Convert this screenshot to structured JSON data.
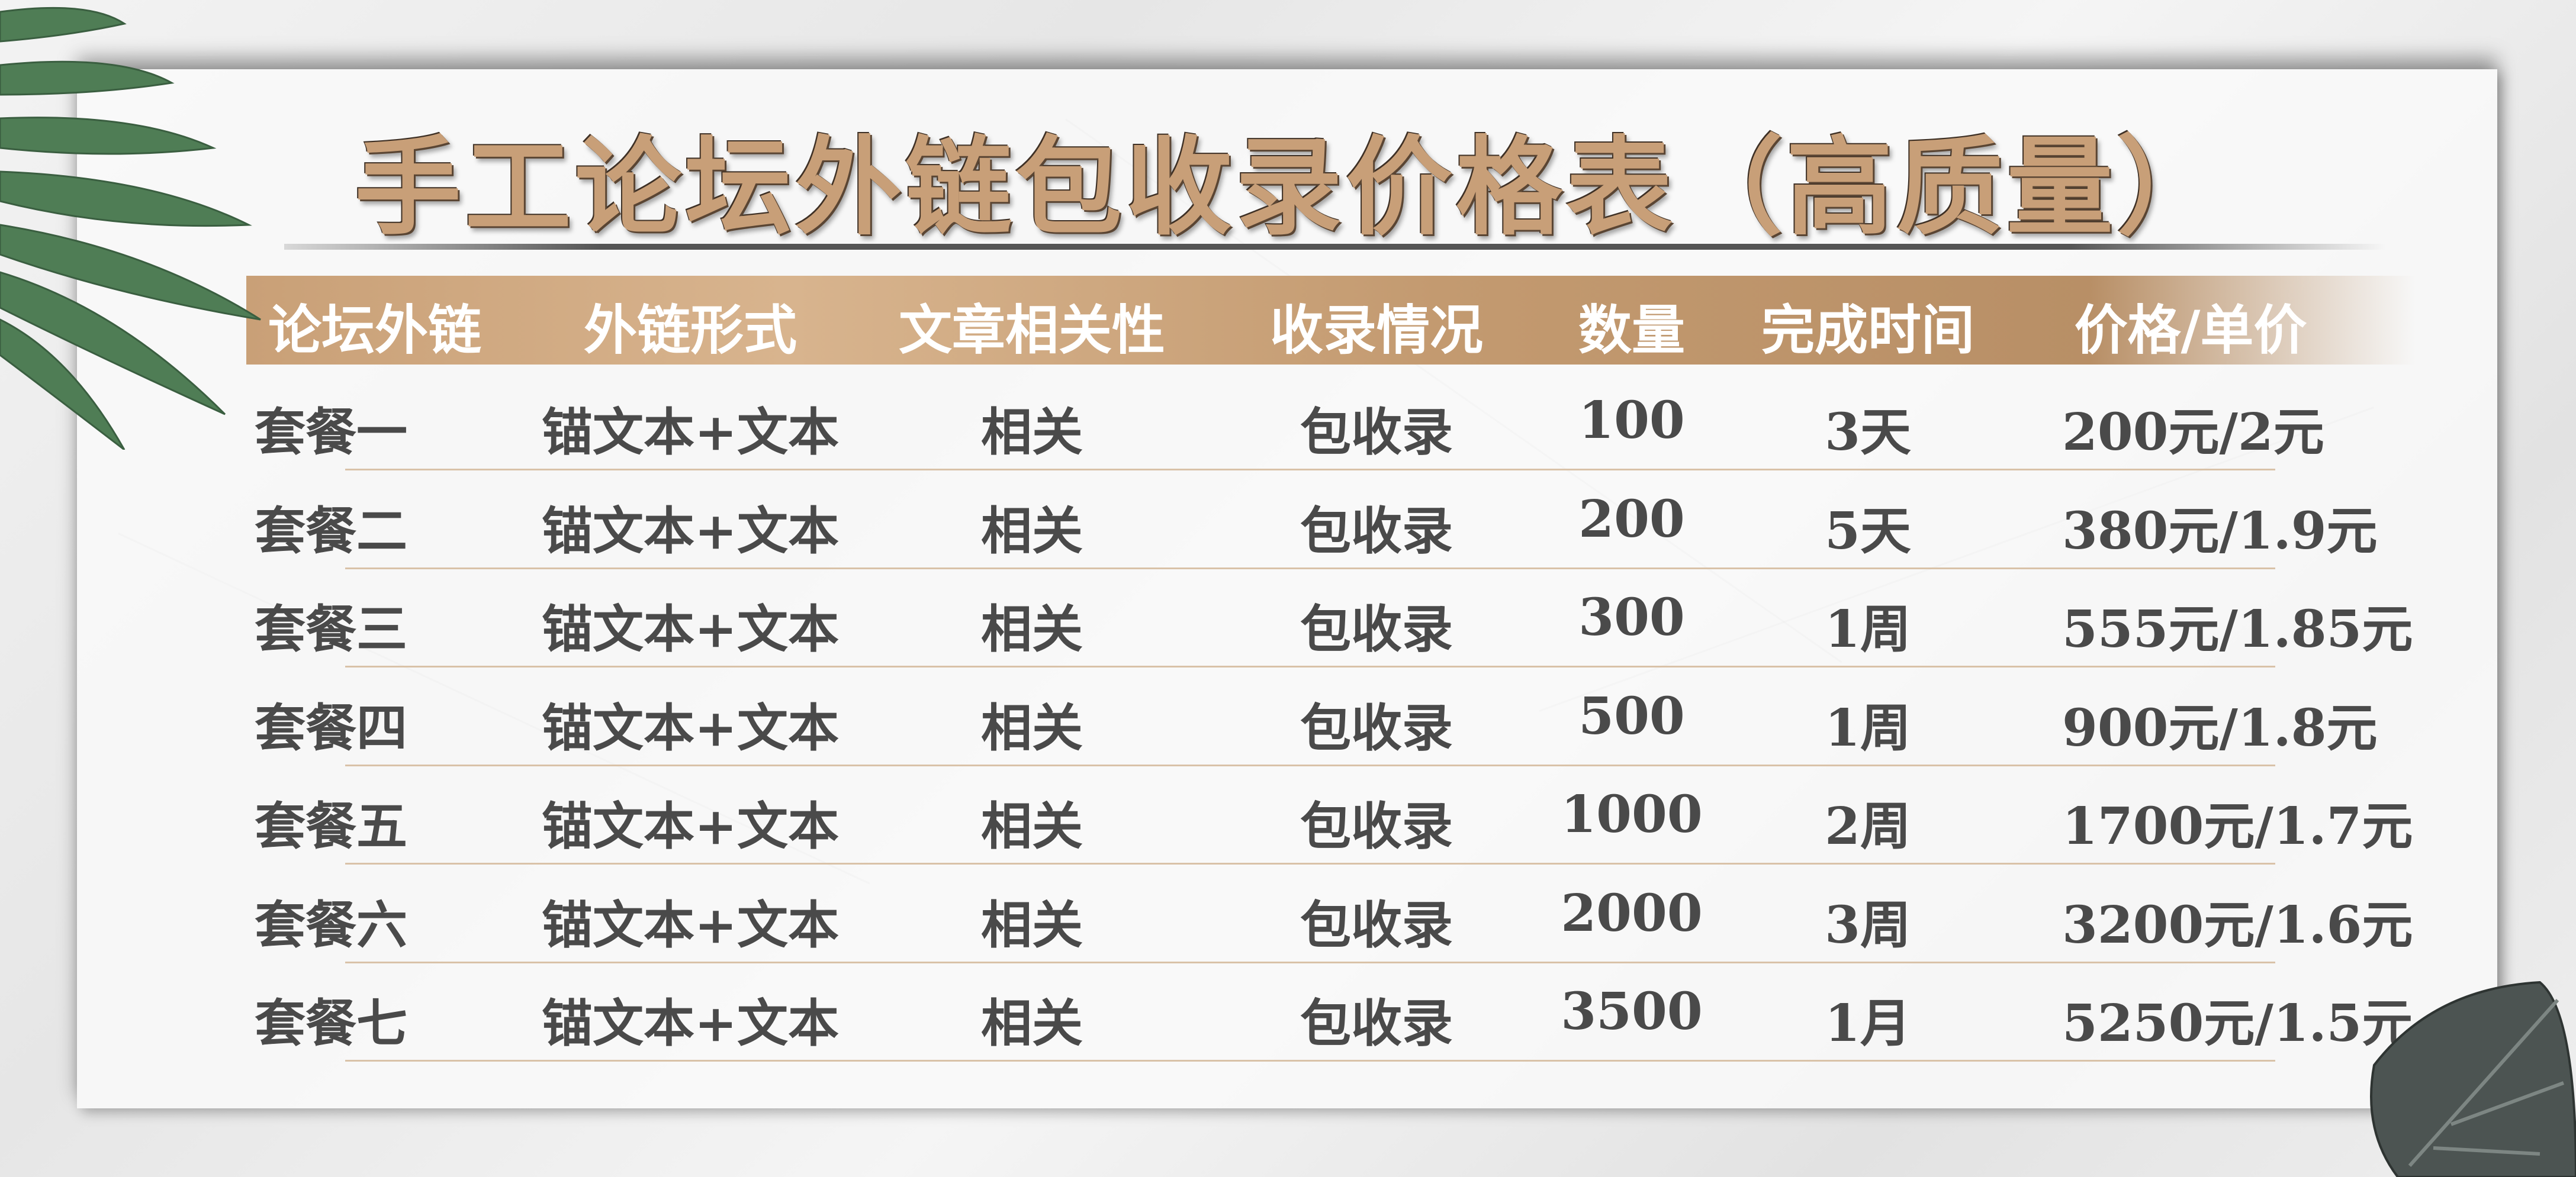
{
  "title": "手工论坛外链包收录价格表（高质量）",
  "colors": {
    "accent": "#c89f78",
    "header_band": "#c39a70",
    "text": "#4a4a4a",
    "leaf": "#4f7d55"
  },
  "table": {
    "headers": [
      "论坛外链",
      "外链形式",
      "文章相关性",
      "收录情况",
      "数量",
      "完成时间",
      "价格/单价"
    ],
    "rows": [
      [
        "套餐一",
        "锚文本+文本",
        "相关",
        "包收录",
        "100",
        "3天",
        "200元/2元"
      ],
      [
        "套餐二",
        "锚文本+文本",
        "相关",
        "包收录",
        "200",
        "5天",
        "380元/1.9元"
      ],
      [
        "套餐三",
        "锚文本+文本",
        "相关",
        "包收录",
        "300",
        "1周",
        "555元/1.85元"
      ],
      [
        "套餐四",
        "锚文本+文本",
        "相关",
        "包收录",
        "500",
        "1周",
        "900元/1.8元"
      ],
      [
        "套餐五",
        "锚文本+文本",
        "相关",
        "包收录",
        "1000",
        "2周",
        "1700元/1.7元"
      ],
      [
        "套餐六",
        "锚文本+文本",
        "相关",
        "包收录",
        "2000",
        "3周",
        "3200元/1.6元"
      ],
      [
        "套餐七",
        "锚文本+文本",
        "相关",
        "包收录",
        "3500",
        "1月",
        "5250元/1.5元"
      ]
    ]
  }
}
